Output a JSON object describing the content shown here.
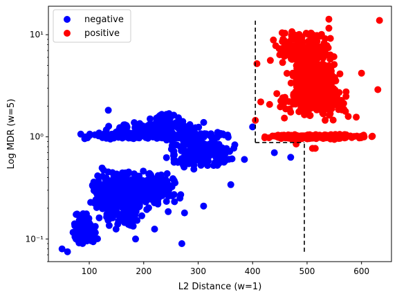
{
  "chart_data": {
    "type": "scatter",
    "xlabel": "L2 Distance (w=1)",
    "ylabel": "Log MDR (w=5)",
    "xlim": [
      25,
      655
    ],
    "ylim": [
      0.06,
      19
    ],
    "yscale": "log",
    "grid": false,
    "legend_position": "top-left",
    "x_ticks": [
      100,
      200,
      300,
      400,
      500,
      600
    ],
    "x_tick_labels": [
      "100",
      "200",
      "300",
      "400",
      "500",
      "600"
    ],
    "y_ticks": [
      0.1,
      1,
      10
    ],
    "y_tick_labels": [
      "10⁻¹",
      "10⁰",
      "10¹"
    ],
    "series": [
      {
        "name": "negative",
        "color": "#0000ff",
        "clusters": [
          {
            "x": [
              95,
              210
            ],
            "y": [
              0.12,
              0.55
            ],
            "n": 420
          },
          {
            "x": [
              60,
              120
            ],
            "y": [
              0.075,
              0.2
            ],
            "n": 110
          },
          {
            "x": [
              140,
              280
            ],
            "y": [
              0.18,
              0.5
            ],
            "n": 180
          },
          {
            "x": [
              230,
              380
            ],
            "y": [
              0.45,
              1.1
            ],
            "n": 260
          },
          {
            "x": [
              55,
              380
            ],
            "y": [
              0.93,
              1.15
            ],
            "n": 320
          },
          {
            "x": [
              100,
              330
            ],
            "y": [
              1.1,
              1.45
            ],
            "n": 70
          },
          {
            "x": [
              200,
              300
            ],
            "y": [
              1.1,
              1.8
            ],
            "n": 40
          }
        ],
        "points": [
          {
            "x": 50,
            "y": 0.08
          },
          {
            "x": 60,
            "y": 0.075
          },
          {
            "x": 135,
            "y": 1.82
          },
          {
            "x": 270,
            "y": 0.09
          },
          {
            "x": 245,
            "y": 0.185
          },
          {
            "x": 275,
            "y": 0.18
          },
          {
            "x": 310,
            "y": 0.21
          },
          {
            "x": 360,
            "y": 0.34
          },
          {
            "x": 385,
            "y": 0.6
          },
          {
            "x": 400,
            "y": 1.25
          },
          {
            "x": 440,
            "y": 0.7
          },
          {
            "x": 470,
            "y": 0.63
          },
          {
            "x": 220,
            "y": 0.125
          },
          {
            "x": 185,
            "y": 0.1
          }
        ]
      },
      {
        "name": "positive",
        "color": "#ff0000",
        "clusters": [
          {
            "x": [
              460,
              570
            ],
            "y": [
              1.6,
              7
            ],
            "n": 520
          },
          {
            "x": [
              420,
              600
            ],
            "y": [
              1.3,
              3.5
            ],
            "n": 140
          },
          {
            "x": [
              420,
              560
            ],
            "y": [
              4,
              13
            ],
            "n": 170
          },
          {
            "x": [
              405,
              635
            ],
            "y": [
              0.93,
              1.08
            ],
            "n": 260
          }
        ],
        "points": [
          {
            "x": 633,
            "y": 13.8
          },
          {
            "x": 540,
            "y": 14.2
          },
          {
            "x": 600,
            "y": 4.2
          },
          {
            "x": 630,
            "y": 2.9
          },
          {
            "x": 408,
            "y": 5.2
          },
          {
            "x": 405,
            "y": 1.45
          },
          {
            "x": 415,
            "y": 2.2
          },
          {
            "x": 510,
            "y": 0.77
          },
          {
            "x": 515,
            "y": 0.77
          },
          {
            "x": 480,
            "y": 0.85
          },
          {
            "x": 600,
            "y": 1.0
          }
        ]
      }
    ],
    "threshold_lines": [
      {
        "x": [
          405,
          405
        ],
        "y": [
          0.88,
          14
        ]
      },
      {
        "x": [
          405,
          495
        ],
        "y": [
          0.88,
          0.88
        ]
      },
      {
        "x": [
          495,
          495
        ],
        "y": [
          0.075,
          0.88
        ]
      }
    ]
  }
}
